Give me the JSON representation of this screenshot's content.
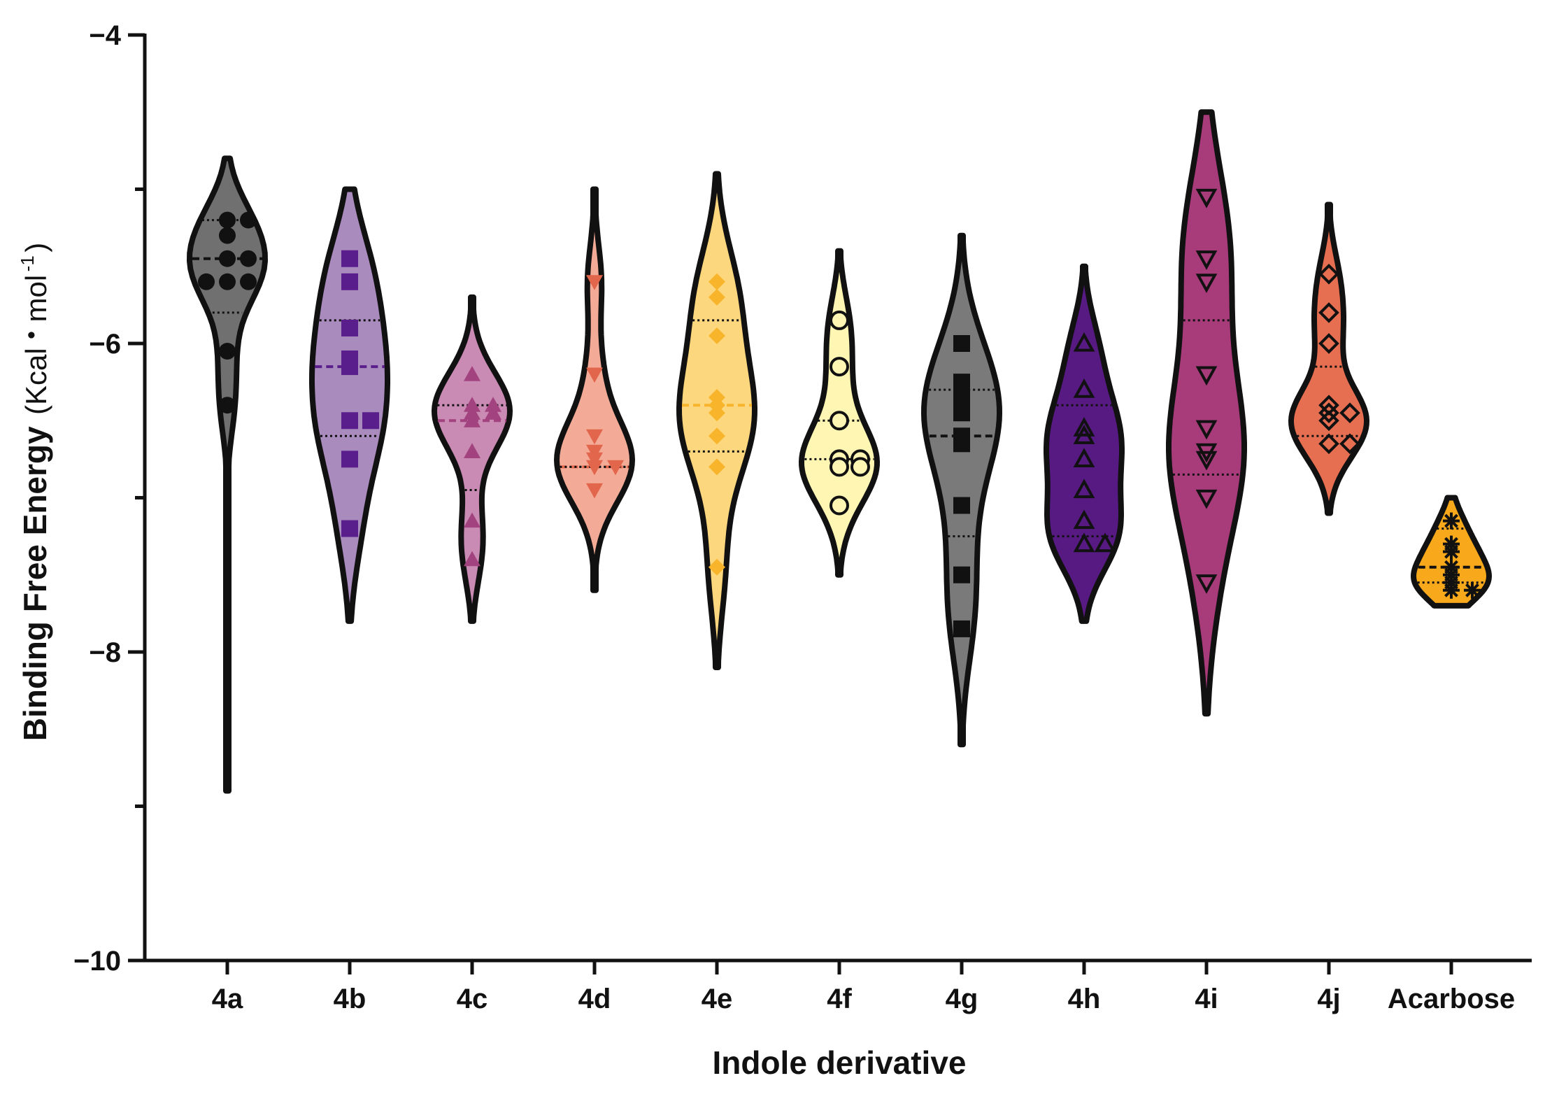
{
  "chart_data": {
    "type": "violin",
    "title": "",
    "xlabel": "Indole derivative",
    "ylabel": {
      "main": "Binding Free Energy",
      "unit_open": "(Kcal",
      "dot": "•",
      "unit_mol": "mol",
      "superscript": "-1",
      "unit_close": ")"
    },
    "ylim": [
      -10,
      -4
    ],
    "yticks": [
      -10,
      -8,
      -6,
      -4
    ],
    "ytick_labels": [
      "−10",
      "−8",
      "−6",
      "−4"
    ],
    "categories": [
      "4a",
      "4b",
      "4c",
      "4d",
      "4e",
      "4f",
      "4g",
      "4h",
      "4i",
      "4j",
      "Acarbose"
    ],
    "series": [
      {
        "category": "4a",
        "color": "#707070",
        "marker": "circle",
        "marker_fill": "#111111",
        "points": [
          -5.2,
          -5.2,
          -5.3,
          -5.45,
          -5.45,
          -5.6,
          -5.6,
          -5.6,
          -6.05,
          -6.4
        ],
        "quartiles": [
          -5.2,
          -5.45,
          -5.8
        ],
        "range": [
          -4.8,
          -8.9
        ]
      },
      {
        "category": "4b",
        "color": "#a98bbd",
        "marker": "square",
        "marker_fill": "#5a1e8c",
        "points": [
          -5.45,
          -5.6,
          -5.9,
          -6.15,
          -6.1,
          -6.5,
          -6.5,
          -6.75,
          -7.2
        ],
        "quartiles": [
          -5.85,
          -6.15,
          -6.6
        ],
        "range": [
          -5.0,
          -7.8
        ]
      },
      {
        "category": "4c",
        "color": "#c98ab4",
        "marker": "triangle-up",
        "marker_fill": "#a2427e",
        "points": [
          -6.2,
          -6.4,
          -6.4,
          -6.45,
          -6.45,
          -6.5,
          -6.7,
          -7.15,
          -7.4
        ],
        "quartiles": [
          -6.4,
          -6.5,
          -6.95
        ],
        "range": [
          -5.7,
          -7.8
        ]
      },
      {
        "category": "4d",
        "color": "#f3ab98",
        "marker": "triangle-down",
        "marker_fill": "#e2664c",
        "points": [
          -5.6,
          -6.2,
          -6.6,
          -6.7,
          -6.75,
          -6.8,
          -6.8,
          -6.95
        ],
        "quartiles": [
          -6.8,
          -6.8,
          -6.8
        ],
        "range": [
          -5.0,
          -7.6
        ]
      },
      {
        "category": "4e",
        "color": "#fdd77e",
        "marker": "diamond",
        "marker_fill": "#f8b52c",
        "points": [
          -5.6,
          -5.7,
          -5.95,
          -6.35,
          -6.4,
          -6.45,
          -6.6,
          -6.8,
          -7.45
        ],
        "quartiles": [
          -5.85,
          -6.4,
          -6.7
        ],
        "range": [
          -4.9,
          -8.1
        ]
      },
      {
        "category": "4f",
        "color": "#fff6b4",
        "marker": "circle-open",
        "marker_fill": "#fff6b4",
        "points": [
          -5.85,
          -6.15,
          -6.5,
          -6.75,
          -6.75,
          -6.8,
          -6.8,
          -7.05
        ],
        "quartiles": [
          -6.5,
          -6.75,
          -6.75
        ],
        "range": [
          -5.4,
          -7.5
        ]
      },
      {
        "category": "4g",
        "color": "#7a7a7a",
        "marker": "square",
        "marker_fill": "#111111",
        "points": [
          -6.0,
          -6.25,
          -6.35,
          -6.45,
          -6.6,
          -6.65,
          -7.05,
          -7.5,
          -7.85
        ],
        "quartiles": [
          -6.3,
          -6.6,
          -7.25
        ],
        "range": [
          -5.3,
          -8.6
        ]
      },
      {
        "category": "4h",
        "color": "#571a82",
        "marker": "triangle-up-open",
        "marker_fill": "#571a82",
        "points": [
          -6.0,
          -6.3,
          -6.55,
          -6.6,
          -6.75,
          -6.95,
          -7.15,
          -7.3,
          -7.3
        ],
        "quartiles": [
          -6.4,
          -7.0,
          -7.25
        ],
        "range": [
          -5.5,
          -7.8
        ]
      },
      {
        "category": "4i",
        "color": "#a83c7b",
        "marker": "triangle-down-open",
        "marker_fill": "#a83c7b",
        "points": [
          -5.05,
          -5.45,
          -5.6,
          -6.2,
          -6.55,
          -6.7,
          -6.75,
          -7.0,
          -7.55
        ],
        "quartiles": [
          -5.85,
          -6.5,
          -6.85
        ],
        "range": [
          -4.5,
          -8.4
        ]
      },
      {
        "category": "4j",
        "color": "#e76f51",
        "marker": "diamond-open",
        "marker_fill": "#e76f51",
        "points": [
          -5.55,
          -5.8,
          -6.0,
          -6.4,
          -6.45,
          -6.45,
          -6.5,
          -6.65,
          -6.65
        ],
        "quartiles": [
          -6.15,
          -6.5,
          -6.6
        ],
        "range": [
          -5.1,
          -7.1
        ]
      },
      {
        "category": "Acarbose",
        "color": "#f7a81b",
        "marker": "asterisk",
        "marker_fill": "#111111",
        "points": [
          -7.15,
          -7.3,
          -7.35,
          -7.45,
          -7.5,
          -7.55,
          -7.6,
          -7.6
        ],
        "quartiles": [
          -7.2,
          -7.45,
          -7.55
        ],
        "range": [
          -7.0,
          -7.7
        ]
      }
    ]
  }
}
